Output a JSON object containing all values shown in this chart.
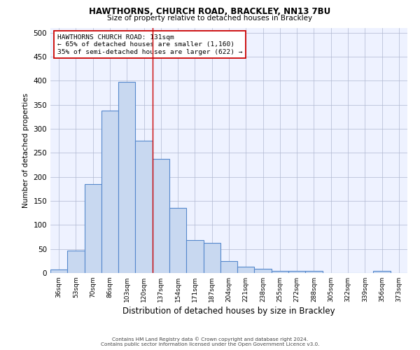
{
  "title1": "HAWTHORNS, CHURCH ROAD, BRACKLEY, NN13 7BU",
  "title2": "Size of property relative to detached houses in Brackley",
  "xlabel": "Distribution of detached houses by size in Brackley",
  "ylabel": "Number of detached properties",
  "categories": [
    "36sqm",
    "53sqm",
    "70sqm",
    "86sqm",
    "103sqm",
    "120sqm",
    "137sqm",
    "154sqm",
    "171sqm",
    "187sqm",
    "204sqm",
    "221sqm",
    "238sqm",
    "255sqm",
    "272sqm",
    "288sqm",
    "305sqm",
    "322sqm",
    "339sqm",
    "356sqm",
    "373sqm"
  ],
  "values": [
    8,
    47,
    185,
    338,
    398,
    275,
    238,
    136,
    69,
    63,
    25,
    13,
    9,
    5,
    4,
    4,
    0,
    0,
    0,
    4,
    0
  ],
  "bar_color": "#c8d8f0",
  "bar_edge_color": "#5588cc",
  "bar_edge_width": 0.8,
  "vline_x": 5.5,
  "vline_color": "#cc0000",
  "annotation_text": "HAWTHORNS CHURCH ROAD: 131sqm\n← 65% of detached houses are smaller (1,160)\n35% of semi-detached houses are larger (622) →",
  "annotation_box_color": "#ffffff",
  "annotation_box_edge": "#cc0000",
  "ylim": [
    0,
    510
  ],
  "yticks": [
    0,
    50,
    100,
    150,
    200,
    250,
    300,
    350,
    400,
    450,
    500
  ],
  "bg_color": "#eef2ff",
  "footer1": "Contains HM Land Registry data © Crown copyright and database right 2024.",
  "footer2": "Contains public sector information licensed under the Open Government Licence v3.0."
}
